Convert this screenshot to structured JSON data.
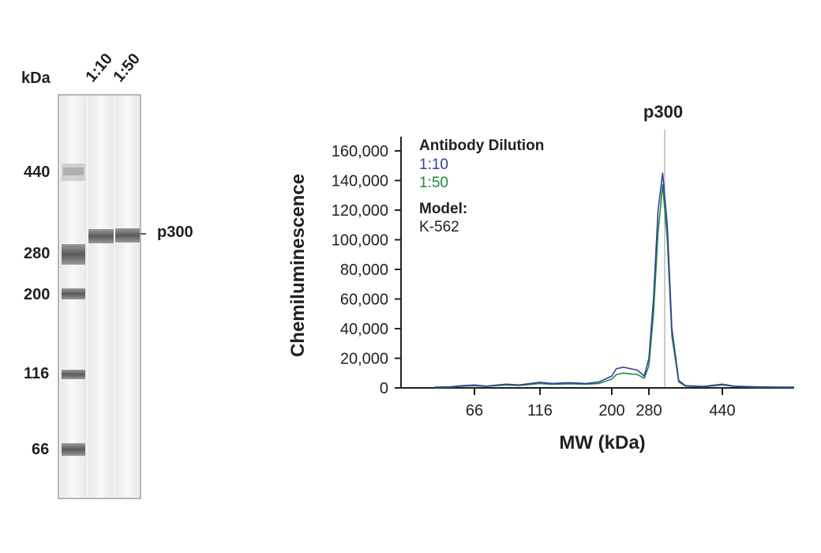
{
  "gel": {
    "unit_label": "kDa",
    "lanes": [
      "1:10",
      "1:50"
    ],
    "markers": [
      "440",
      "280",
      "200",
      "116",
      "66"
    ],
    "band_label": "p300"
  },
  "legend": {
    "title": "Antibody Dilution",
    "series": [
      {
        "name": "1:10",
        "color": "#3340a0"
      },
      {
        "name": "1:50",
        "color": "#1f8a3a"
      }
    ],
    "model_title": "Model:",
    "model_value": "K-562"
  },
  "peak_label": "p300",
  "chart_data": {
    "type": "line",
    "xlabel": "MW (kDa)",
    "ylabel": "Chemiluminescence",
    "x_ticks": [
      "66",
      "116",
      "200",
      "280",
      "440"
    ],
    "y_ticks": [
      "160,000",
      "140,000",
      "120,000",
      "100,000",
      "80,000",
      "60,000",
      "40,000",
      "20,000",
      "0"
    ],
    "ylim": [
      0,
      160000
    ],
    "peak_marker": "p300",
    "x_mw": [
      30,
      45,
      55,
      66,
      75,
      90,
      100,
      116,
      130,
      150,
      170,
      185,
      200,
      210,
      225,
      240,
      255,
      270,
      280,
      290,
      300,
      310,
      320,
      330,
      345,
      360,
      400,
      440,
      500,
      600,
      700,
      800
    ],
    "series": [
      {
        "name": "1:10",
        "color": "#3340a0",
        "values": [
          500,
          800,
          1500,
          2000,
          1200,
          2500,
          2000,
          3800,
          3000,
          3500,
          3000,
          4000,
          8000,
          13000,
          14000,
          13000,
          12000,
          8000,
          20000,
          60000,
          120000,
          145000,
          110000,
          40000,
          5000,
          1500,
          1000,
          2500,
          1200,
          800,
          600,
          500
        ]
      },
      {
        "name": "1:50",
        "color": "#1f8a3a",
        "values": [
          300,
          600,
          1200,
          1500,
          1000,
          2000,
          1600,
          3000,
          2400,
          2800,
          2500,
          3000,
          6000,
          9000,
          10000,
          9500,
          9000,
          6500,
          15000,
          50000,
          105000,
          137000,
          100000,
          35000,
          4000,
          1200,
          800,
          2000,
          1000,
          600,
          400,
          300
        ]
      }
    ]
  }
}
